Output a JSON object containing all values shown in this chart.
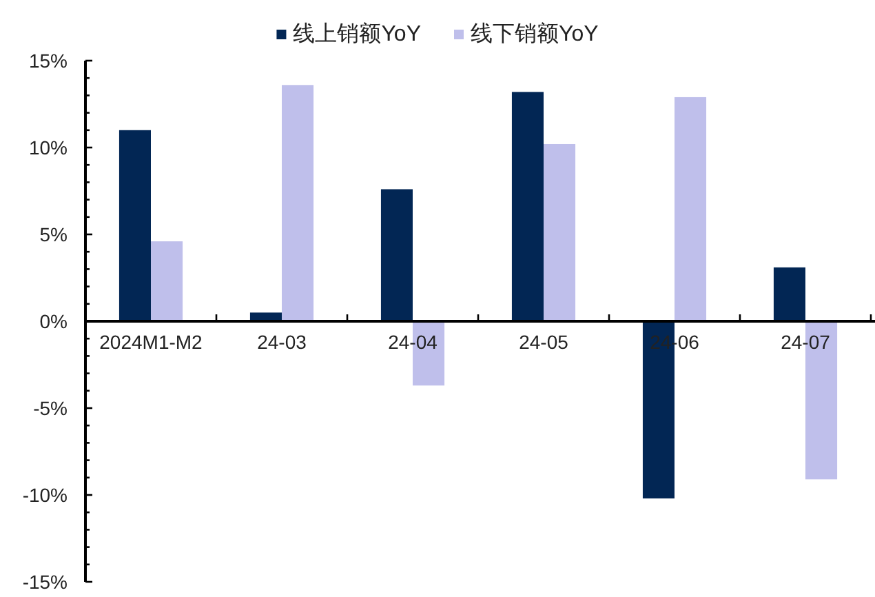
{
  "chart_data": {
    "type": "bar",
    "legend": "top",
    "categories": [
      "2024M1-M2",
      "24-03",
      "24-04",
      "24-05",
      "24-06",
      "24-07"
    ],
    "series": [
      {
        "name": "线上销额YoY",
        "color": "#022654",
        "values": [
          11.0,
          0.5,
          7.6,
          13.2,
          -10.2,
          3.1
        ]
      },
      {
        "name": "线下销额YoY",
        "color": "#bfbfeb",
        "values": [
          4.6,
          13.6,
          -3.7,
          10.2,
          12.9,
          -9.1
        ]
      }
    ],
    "ylim": [
      -15,
      15
    ],
    "yticks": [
      {
        "value": -15,
        "label": "-15%"
      },
      {
        "value": -14,
        "label": null
      },
      {
        "value": -13,
        "label": null
      },
      {
        "value": -12,
        "label": null
      },
      {
        "value": -11,
        "label": null
      },
      {
        "value": -10,
        "label": "-10%"
      },
      {
        "value": -9,
        "label": null
      },
      {
        "value": -8,
        "label": null
      },
      {
        "value": -7,
        "label": null
      },
      {
        "value": -6,
        "label": null
      },
      {
        "value": -5,
        "label": "-5%"
      },
      {
        "value": -4,
        "label": null
      },
      {
        "value": -3,
        "label": null
      },
      {
        "value": -2,
        "label": null
      },
      {
        "value": -1,
        "label": null
      },
      {
        "value": 0,
        "label": "0%"
      },
      {
        "value": 1,
        "label": null
      },
      {
        "value": 2,
        "label": null
      },
      {
        "value": 3,
        "label": null
      },
      {
        "value": 4,
        "label": null
      },
      {
        "value": 5,
        "label": "5%"
      },
      {
        "value": 6,
        "label": null
      },
      {
        "value": 7,
        "label": null
      },
      {
        "value": 8,
        "label": null
      },
      {
        "value": 9,
        "label": null
      },
      {
        "value": 10,
        "label": "10%"
      },
      {
        "value": 11,
        "label": null
      },
      {
        "value": 12,
        "label": null
      },
      {
        "value": 13,
        "label": null
      },
      {
        "value": 14,
        "label": null
      },
      {
        "value": 15,
        "label": "15%"
      }
    ]
  }
}
